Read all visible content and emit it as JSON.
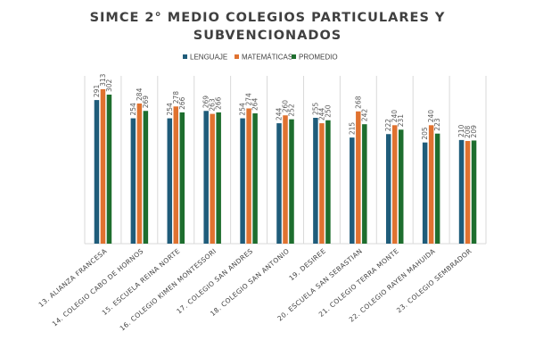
{
  "chart_data": {
    "type": "bar",
    "title_lines": [
      "SIMCE 2° MEDIO COLEGIOS PARTICULARES Y",
      "SUBVENCIONADOS"
    ],
    "categories": [
      "13. ALIANZA FRANCESA",
      "14. COLEGIO CABO DE HORNOS",
      "15. ESCUELA REINA NORTE",
      "16. COLEGIO KIMEN MONTESSORI",
      "17. COLEGIO SAN ANDRES",
      "18. COLEGIO SAN ANTONIO",
      "19. DESIREE",
      "20. ESCUELA SAN SEBASTIAN",
      "21. COLEGIO TERRA MONTE",
      "22. COLEGIO RAYEN MAHUIDA",
      "23. COLEGIO SEMBRADOR"
    ],
    "series": [
      {
        "name": "LENGUAJE",
        "color": "#1f5c7a",
        "values": [
          291,
          254,
          254,
          269,
          254,
          244,
          255,
          215,
          222,
          205,
          210
        ]
      },
      {
        "name": "MATEMÁTICAS",
        "color": "#e07230",
        "values": [
          313,
          284,
          278,
          263,
          274,
          260,
          244,
          268,
          240,
          240,
          208
        ]
      },
      {
        "name": "PROMEDIO",
        "color": "#1e6e2e",
        "values": [
          302,
          269,
          266,
          266,
          264,
          252,
          250,
          242,
          231,
          223,
          209
        ]
      }
    ],
    "ylim": [
      0,
      340
    ],
    "grid": "vertical separators between categories",
    "legend_position": "top-center"
  }
}
